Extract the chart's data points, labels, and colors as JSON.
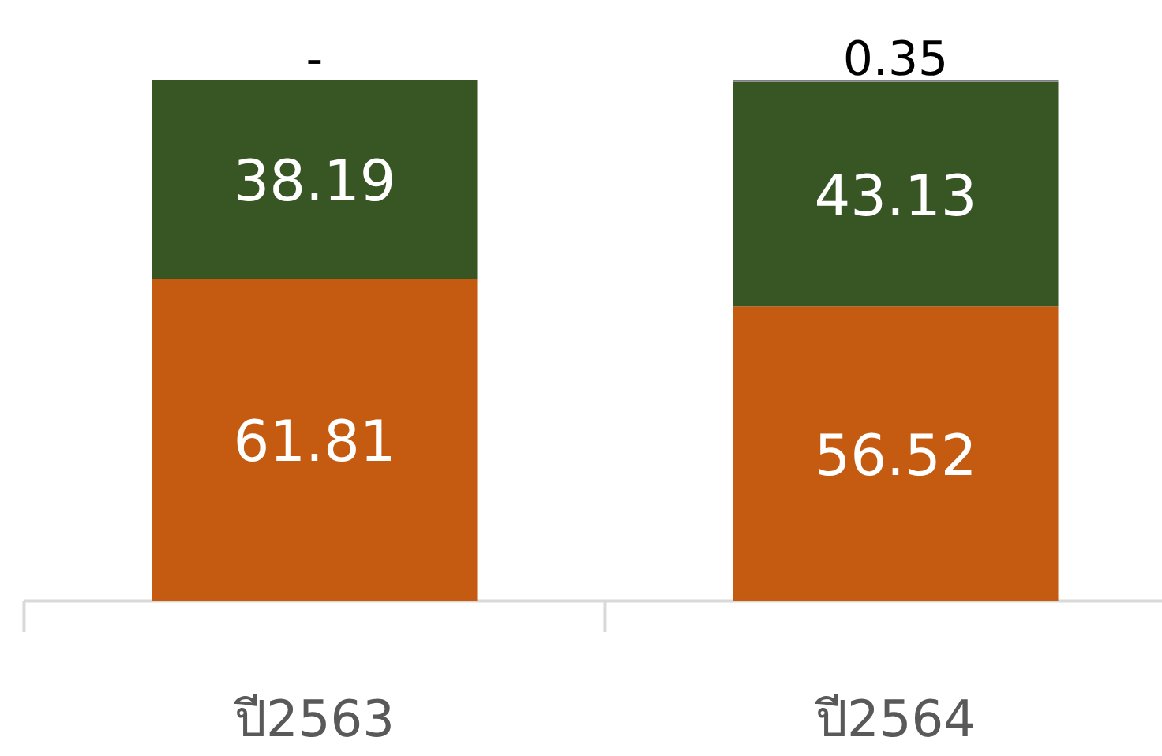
{
  "chart_data": {
    "type": "bar",
    "stacked": true,
    "categories": [
      "ปี2563",
      "ปี2564"
    ],
    "series": [
      {
        "color": "#c55a11",
        "values": [
          61.81,
          56.52
        ],
        "value_labels": [
          "61.81",
          "56.52"
        ]
      },
      {
        "color": "#375623",
        "values": [
          38.19,
          43.13
        ],
        "value_labels": [
          "38.19",
          "43.13"
        ]
      },
      {
        "color": "#7f7f7f",
        "values": [
          0,
          0.35
        ],
        "value_labels": [
          "-",
          "0.35"
        ]
      }
    ],
    "grid": false
  }
}
